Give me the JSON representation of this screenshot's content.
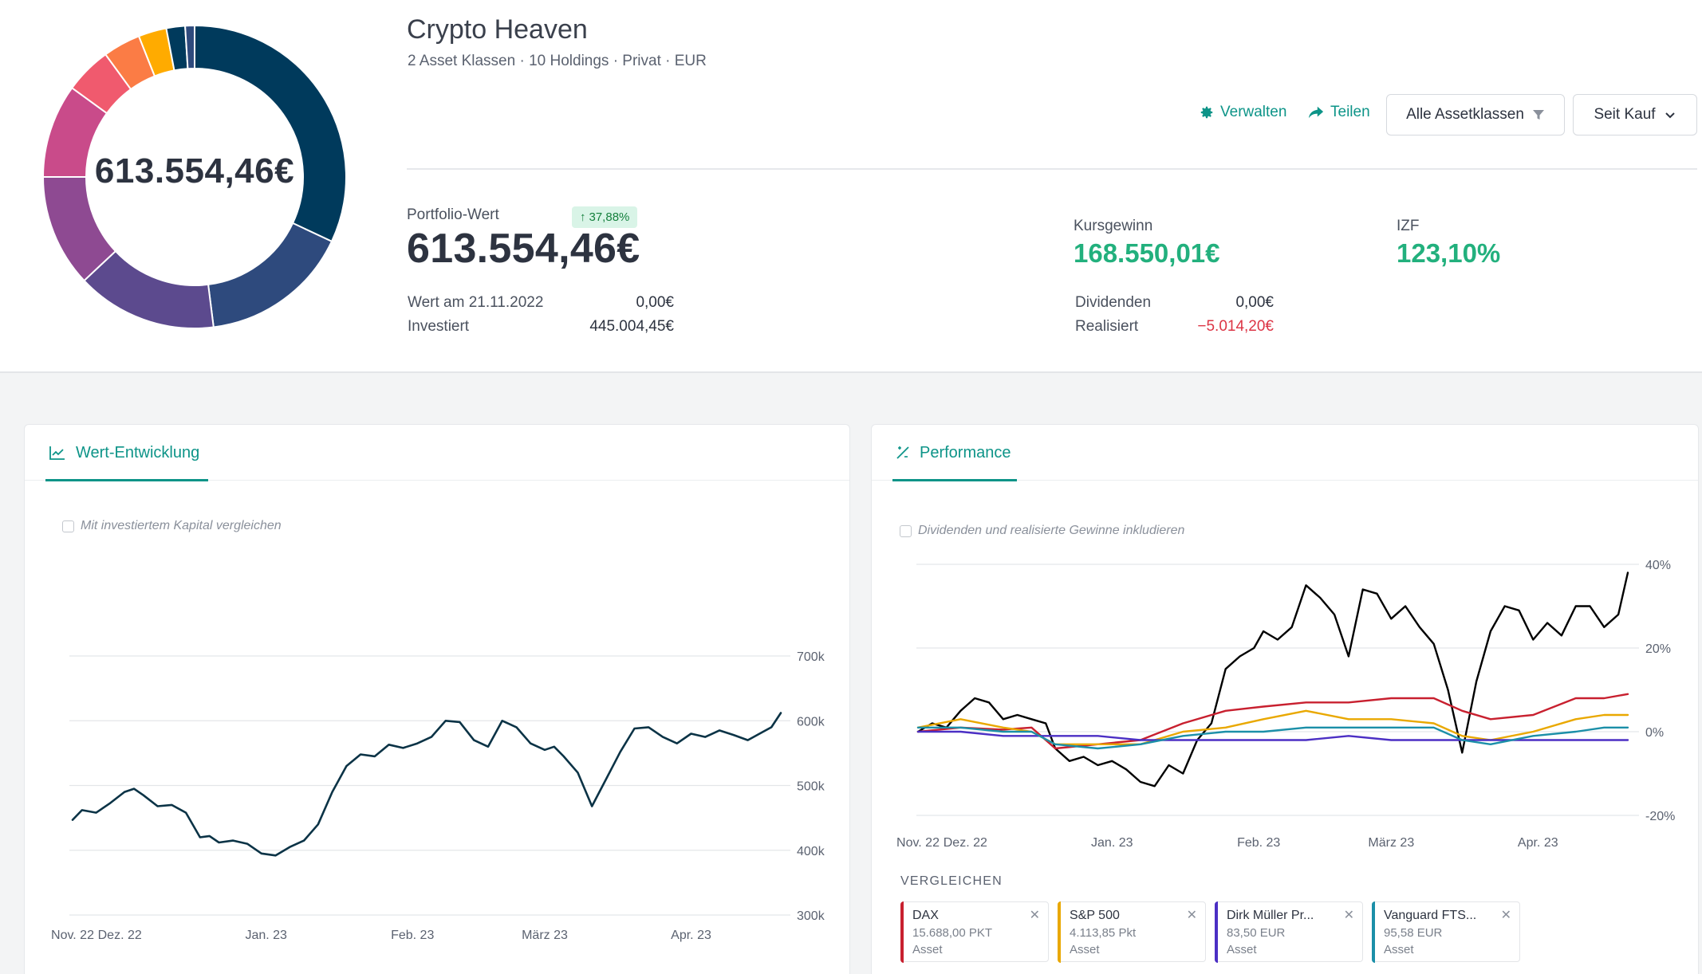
{
  "header": {
    "donut_value": "613.554,46€",
    "title": "Crypto Heaven",
    "subtitle": "2 Asset Klassen · 10 Holdings · Privat · EUR",
    "donut_segments": [
      {
        "color": "#003a5c",
        "value": 32
      },
      {
        "color": "#2e4a7d",
        "value": 16
      },
      {
        "color": "#5c4a8e",
        "value": 15
      },
      {
        "color": "#8e4a92",
        "value": 12
      },
      {
        "color": "#c94b8a",
        "value": 10
      },
      {
        "color": "#f05a6e",
        "value": 5
      },
      {
        "color": "#fb7c45",
        "value": 4
      },
      {
        "color": "#ffab00",
        "value": 3
      },
      {
        "color": "#003a5c",
        "value": 2
      },
      {
        "color": "#2e4a7d",
        "value": 1
      }
    ]
  },
  "actions": {
    "manage": "Verwalten",
    "share": "Teilen",
    "asset_filter": "Alle Assetklassen",
    "period": "Seit Kauf"
  },
  "summary": {
    "portfolio_label": "Portfolio-Wert",
    "portfolio_value": "613.554,46€",
    "change_badge": "37,88%",
    "value_at_label": "Wert am 21.11.2022",
    "value_at": "0,00€",
    "invested_label": "Investiert",
    "invested": "445.004,45€",
    "gain_label": "Kursgewinn",
    "gain": "168.550,01€",
    "irr_label": "IZF",
    "irr": "123,10%",
    "dividends_label": "Dividenden",
    "dividends": "0,00€",
    "realized_label": "Realisiert",
    "realized": "−5.014,20€"
  },
  "left_card": {
    "tab": "Wert-Entwicklung",
    "checkbox_label": "Mit investiertem Kapital vergleichen"
  },
  "right_card": {
    "tab": "Performance",
    "checkbox_label": "Dividenden und realisierte Gewinne inkludieren",
    "compare_title": "VERGLEICHEN",
    "compare": [
      {
        "name": "DAX",
        "value": "15.688,00 PKT",
        "type": "Asset",
        "color": "#c8202f"
      },
      {
        "name": "S&P 500",
        "value": "4.113,85 Pkt",
        "type": "Asset",
        "color": "#e9a800"
      },
      {
        "name": "Dirk Müller Pr...",
        "value": "83,50 EUR",
        "type": "Asset",
        "color": "#4b2fc4"
      },
      {
        "name": "Vanguard FTS...",
        "value": "95,58 EUR",
        "type": "Asset",
        "color": "#1b8fa8"
      }
    ]
  },
  "chart_data": [
    {
      "type": "line",
      "title": "",
      "ylabel": "",
      "ylim": [
        300000,
        700000
      ],
      "yticks": [
        {
          "v": 700000,
          "label": "700k"
        },
        {
          "v": 600000,
          "label": "600k"
        },
        {
          "v": 500000,
          "label": "500k"
        },
        {
          "v": 400000,
          "label": "400k"
        },
        {
          "v": 300000,
          "label": "300k"
        }
      ],
      "xlim": [
        "2022-11-21",
        "2023-04-20"
      ],
      "xticks": [
        {
          "d": "2022-11-21",
          "label": "Nov. 22"
        },
        {
          "d": "2022-12-01",
          "label": "Dez. 22"
        },
        {
          "d": "2023-01-01",
          "label": "Jan. 23"
        },
        {
          "d": "2023-02-01",
          "label": "Feb. 23"
        },
        {
          "d": "2023-03-01",
          "label": "März 23"
        },
        {
          "d": "2023-04-01",
          "label": "Apr. 23"
        }
      ],
      "series": [
        {
          "color": "#0b3346",
          "x": [
            "2022-11-21",
            "2022-11-23",
            "2022-11-26",
            "2022-11-29",
            "2022-12-02",
            "2022-12-04",
            "2022-12-06",
            "2022-12-09",
            "2022-12-12",
            "2022-12-15",
            "2022-12-18",
            "2022-12-20",
            "2022-12-22",
            "2022-12-25",
            "2022-12-28",
            "2022-12-31",
            "2023-01-03",
            "2023-01-06",
            "2023-01-09",
            "2023-01-12",
            "2023-01-15",
            "2023-01-18",
            "2023-01-21",
            "2023-01-24",
            "2023-01-27",
            "2023-01-30",
            "2023-02-02",
            "2023-02-05",
            "2023-02-08",
            "2023-02-11",
            "2023-02-14",
            "2023-02-17",
            "2023-02-20",
            "2023-02-23",
            "2023-02-26",
            "2023-03-01",
            "2023-03-03",
            "2023-03-05",
            "2023-03-08",
            "2023-03-11",
            "2023-03-14",
            "2023-03-17",
            "2023-03-20",
            "2023-03-23",
            "2023-03-26",
            "2023-03-29",
            "2023-04-01",
            "2023-04-04",
            "2023-04-07",
            "2023-04-10",
            "2023-04-13",
            "2023-04-16",
            "2023-04-18",
            "2023-04-20"
          ],
          "values": [
            447000,
            462000,
            458000,
            473000,
            490000,
            495000,
            485000,
            468000,
            470000,
            458000,
            420000,
            422000,
            412000,
            415000,
            410000,
            395000,
            392000,
            405000,
            415000,
            440000,
            490000,
            530000,
            548000,
            545000,
            563000,
            558000,
            565000,
            575000,
            600000,
            598000,
            570000,
            560000,
            600000,
            590000,
            565000,
            555000,
            560000,
            545000,
            520000,
            468000,
            510000,
            552000,
            588000,
            590000,
            575000,
            565000,
            580000,
            575000,
            585000,
            578000,
            570000,
            582000,
            590000,
            612000
          ]
        }
      ]
    },
    {
      "type": "line",
      "title": "",
      "ylabel": "",
      "ylim": [
        -20,
        40
      ],
      "yticks": [
        {
          "v": 40,
          "label": "40%"
        },
        {
          "v": 20,
          "label": "20%"
        },
        {
          "v": 0,
          "label": "0%"
        },
        {
          "v": -20,
          "label": "-20%"
        }
      ],
      "xlim": [
        "2022-11-21",
        "2023-04-20"
      ],
      "xticks": [
        {
          "d": "2022-11-21",
          "label": "Nov. 22"
        },
        {
          "d": "2022-12-01",
          "label": "Dez. 22"
        },
        {
          "d": "2023-01-01",
          "label": "Jan. 23"
        },
        {
          "d": "2023-02-01",
          "label": "Feb. 23"
        },
        {
          "d": "2023-03-01",
          "label": "März 23"
        },
        {
          "d": "2023-04-01",
          "label": "Apr. 23"
        }
      ],
      "series": [
        {
          "color": "#000000",
          "x": [
            "2022-11-21",
            "2022-11-24",
            "2022-11-27",
            "2022-11-30",
            "2022-12-03",
            "2022-12-06",
            "2022-12-09",
            "2022-12-12",
            "2022-12-15",
            "2022-12-18",
            "2022-12-20",
            "2022-12-23",
            "2022-12-26",
            "2022-12-29",
            "2023-01-01",
            "2023-01-04",
            "2023-01-07",
            "2023-01-10",
            "2023-01-13",
            "2023-01-16",
            "2023-01-19",
            "2023-01-22",
            "2023-01-25",
            "2023-01-28",
            "2023-01-31",
            "2023-02-02",
            "2023-02-05",
            "2023-02-08",
            "2023-02-11",
            "2023-02-14",
            "2023-02-17",
            "2023-02-20",
            "2023-02-23",
            "2023-02-26",
            "2023-03-01",
            "2023-03-04",
            "2023-03-07",
            "2023-03-10",
            "2023-03-13",
            "2023-03-16",
            "2023-03-19",
            "2023-03-22",
            "2023-03-25",
            "2023-03-28",
            "2023-03-31",
            "2023-04-03",
            "2023-04-06",
            "2023-04-09",
            "2023-04-12",
            "2023-04-15",
            "2023-04-18",
            "2023-04-20"
          ],
          "values": [
            0,
            2,
            1,
            5,
            8,
            7,
            3,
            4,
            3,
            2,
            -4,
            -7,
            -6,
            -8,
            -7,
            -9,
            -12,
            -13,
            -8,
            -10,
            -2,
            2,
            15,
            18,
            20,
            24,
            22,
            25,
            35,
            32,
            28,
            18,
            34,
            33,
            27,
            30,
            25,
            21,
            10,
            -5,
            12,
            24,
            30,
            29,
            22,
            26,
            23,
            30,
            30,
            25,
            28,
            38
          ]
        },
        {
          "color": "#c8202f",
          "x": [
            "2022-11-21",
            "2022-11-30",
            "2022-12-09",
            "2022-12-15",
            "2022-12-20",
            "2022-12-29",
            "2023-01-07",
            "2023-01-16",
            "2023-01-25",
            "2023-02-02",
            "2023-02-11",
            "2023-02-20",
            "2023-03-01",
            "2023-03-10",
            "2023-03-16",
            "2023-03-22",
            "2023-03-31",
            "2023-04-09",
            "2023-04-15",
            "2023-04-20"
          ],
          "values": [
            0,
            1,
            0.5,
            1,
            -4,
            -3,
            -2,
            2,
            5,
            6,
            7,
            7,
            8,
            8,
            5,
            3,
            4,
            8,
            8,
            9
          ]
        },
        {
          "color": "#e9a800",
          "x": [
            "2022-11-21",
            "2022-11-30",
            "2022-12-09",
            "2022-12-15",
            "2022-12-20",
            "2022-12-29",
            "2023-01-07",
            "2023-01-16",
            "2023-01-25",
            "2023-02-02",
            "2023-02-11",
            "2023-02-20",
            "2023-03-01",
            "2023-03-10",
            "2023-03-16",
            "2023-03-22",
            "2023-03-31",
            "2023-04-09",
            "2023-04-15",
            "2023-04-20"
          ],
          "values": [
            1,
            3,
            1,
            0,
            -3,
            -3,
            -3,
            0,
            1,
            3,
            5,
            3,
            3,
            2,
            -1,
            -2,
            0,
            3,
            4,
            4
          ]
        },
        {
          "color": "#4b2fc4",
          "x": [
            "2022-11-21",
            "2022-11-30",
            "2022-12-09",
            "2022-12-15",
            "2022-12-20",
            "2022-12-29",
            "2023-01-07",
            "2023-01-16",
            "2023-01-25",
            "2023-02-02",
            "2023-02-11",
            "2023-02-20",
            "2023-03-01",
            "2023-03-10",
            "2023-03-16",
            "2023-03-22",
            "2023-03-31",
            "2023-04-09",
            "2023-04-15",
            "2023-04-20"
          ],
          "values": [
            0,
            0,
            -1,
            -1,
            -1,
            -1,
            -2,
            -2,
            -2,
            -2,
            -2,
            -1,
            -2,
            -2,
            -2,
            -2,
            -2,
            -2,
            -2,
            -2
          ]
        },
        {
          "color": "#1b8fa8",
          "x": [
            "2022-11-21",
            "2022-11-30",
            "2022-12-09",
            "2022-12-15",
            "2022-12-20",
            "2022-12-29",
            "2023-01-07",
            "2023-01-16",
            "2023-01-25",
            "2023-02-02",
            "2023-02-11",
            "2023-02-20",
            "2023-03-01",
            "2023-03-10",
            "2023-03-16",
            "2023-03-22",
            "2023-03-31",
            "2023-04-09",
            "2023-04-15",
            "2023-04-20"
          ],
          "values": [
            1,
            1,
            0,
            0,
            -3,
            -4,
            -3,
            -1,
            0,
            0,
            1,
            1,
            1,
            1,
            -2,
            -3,
            -1,
            0,
            1,
            1
          ]
        }
      ]
    }
  ]
}
